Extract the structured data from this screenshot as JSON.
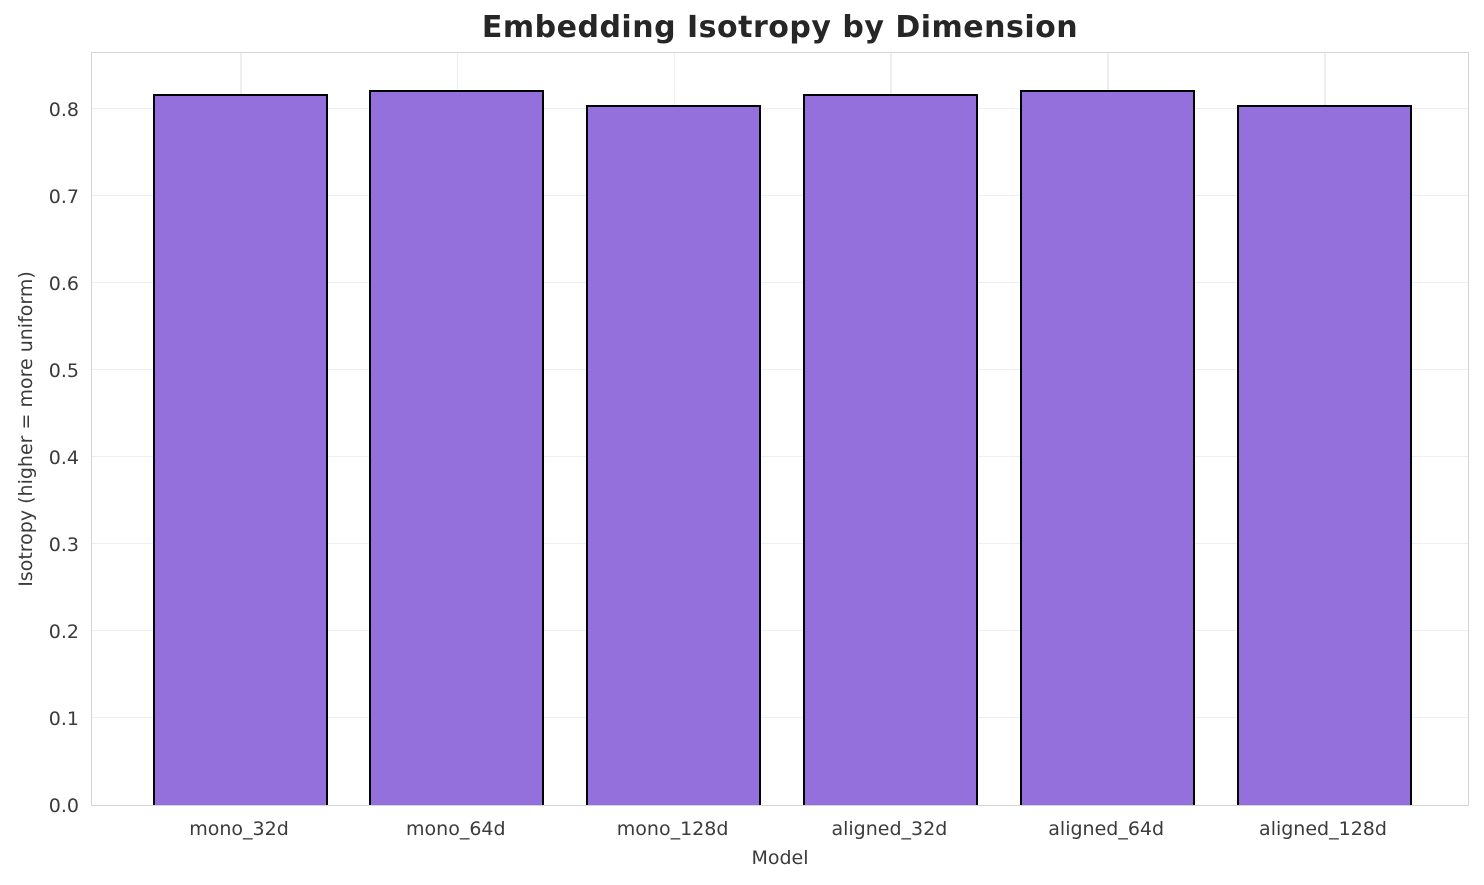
{
  "chart_data": {
    "type": "bar",
    "title": "Embedding Isotropy by Dimension",
    "xlabel": "Model",
    "ylabel": "Isotropy (higher = more uniform)",
    "categories": [
      "mono_32d",
      "mono_64d",
      "mono_128d",
      "aligned_32d",
      "aligned_64d",
      "aligned_128d"
    ],
    "values": [
      0.817,
      0.822,
      0.805,
      0.817,
      0.822,
      0.805
    ],
    "yticks": [
      0.0,
      0.1,
      0.2,
      0.3,
      0.4,
      0.5,
      0.6,
      0.7,
      0.8
    ],
    "ylim": [
      0,
      0.867
    ],
    "grid": "both",
    "legend": null,
    "colors": {
      "bar_fill": "#9370DB",
      "bar_edge": "#000000",
      "grid": "#eeeeee",
      "spine": "#d5d5d5",
      "title_text": "#262626",
      "tick_text": "#3b3b3b",
      "background": "#ffffff"
    }
  }
}
